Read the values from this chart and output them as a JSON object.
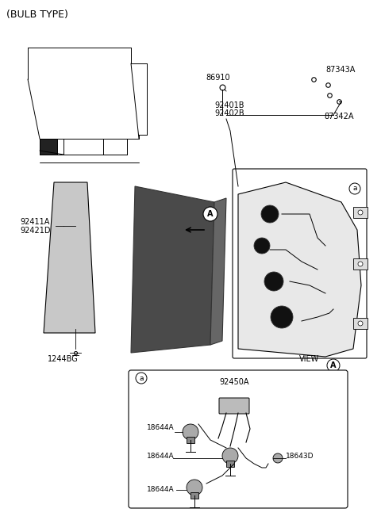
{
  "title": "(BULB TYPE)",
  "bg_color": "#ffffff",
  "fig_width": 4.8,
  "fig_height": 6.56,
  "dpi": 100,
  "labels": {
    "bulb_type": "(BULB TYPE)",
    "86910": "86910",
    "87343A": "87343A",
    "92401B": "92401B",
    "92402B": "92402B",
    "87342A": "87342A",
    "92411A": "92411A",
    "92421D": "92421D",
    "1244BG": "1244BG",
    "view_A": "VIEW",
    "92450A": "92450A",
    "18644A_1": "18644A",
    "18644A_2": "18644A",
    "18644A_3": "18644A",
    "18643D": "18643D",
    "circle_a_upper": "a",
    "circle_A_mid": "A",
    "circle_a_lower": "a"
  },
  "font_size_title": 9,
  "font_size_labels": 7,
  "font_size_small": 6.5,
  "line_color": "#000000",
  "part_fill": "#cccccc",
  "dark_fill": "#555555"
}
